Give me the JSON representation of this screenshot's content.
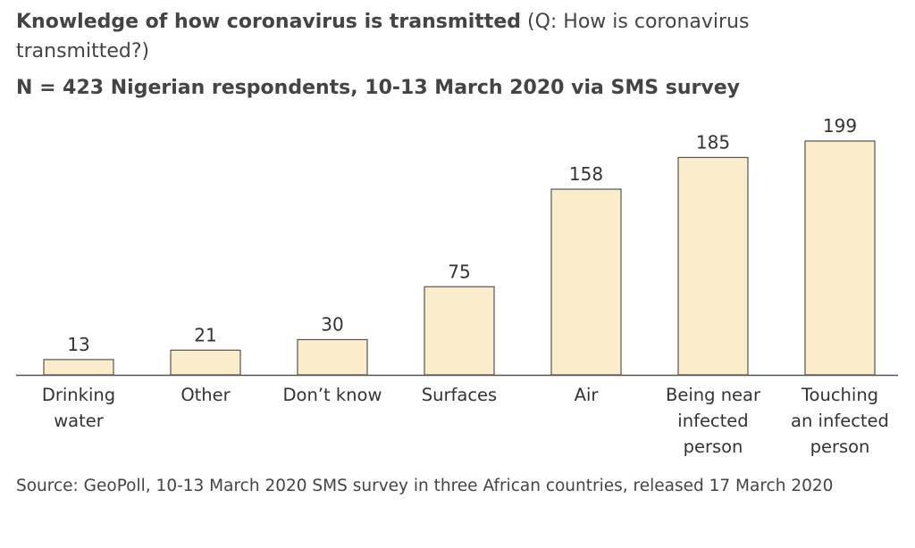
{
  "chart_data": {
    "type": "bar",
    "title": "Knowledge of how coronavirus is transmitted",
    "title_note": "(Q: How is coronavirus transmitted?)",
    "subtitle": "N = 423 Nigerian respondents, 10-13 March 2020 via SMS survey",
    "source": "Source: GeoPoll, 10-13 March 2020 SMS survey in three African countries, released 17 March 2020",
    "categories": [
      "Drinking\nwater",
      "Other",
      "Don’t know",
      "Surfaces",
      "Air",
      "Being near\ninfected\nperson",
      "Touching\nan infected\nperson"
    ],
    "values": [
      13,
      21,
      30,
      75,
      158,
      185,
      199
    ],
    "color": "#fbeccb"
  }
}
